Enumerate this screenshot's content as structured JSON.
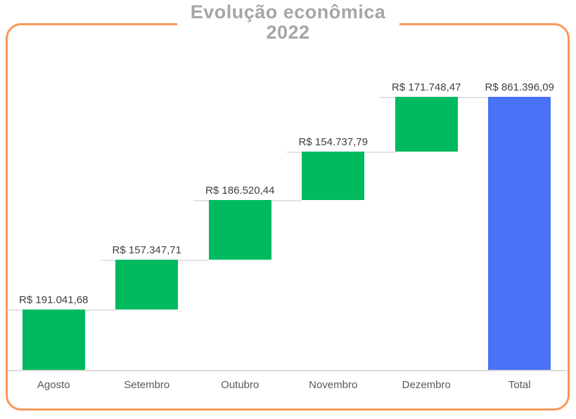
{
  "title": {
    "line1": "Evolução econômica",
    "line2": "2022"
  },
  "chart_data": {
    "type": "bar",
    "subtype": "waterfall",
    "title": "Evolução econômica 2022",
    "categories": [
      "Agosto",
      "Setembro",
      "Outubro",
      "Novembro",
      "Dezembro",
      "Total"
    ],
    "values": [
      191041.68,
      157347.71,
      186520.44,
      154737.79,
      171748.47,
      861396.09
    ],
    "value_labels": [
      "R$ 191.041,68",
      "R$ 157.347,71",
      "R$ 186.520,44",
      "R$ 154.737,79",
      "R$ 171.748,47",
      "R$ 861.396,09"
    ],
    "roles": [
      "increase",
      "increase",
      "increase",
      "increase",
      "increase",
      "total"
    ],
    "cumulative": [
      191041.68,
      348389.39,
      534909.83,
      689647.62,
      861396.09,
      861396.09
    ],
    "xlabel": "",
    "ylabel": "",
    "ylim": [
      0,
      880000
    ],
    "grid": false,
    "legend": false,
    "colors": {
      "increase": "#00BA60",
      "total": "#4A72F6"
    }
  },
  "style": {
    "border_color": "#F9975A",
    "title_color": "#A6A6A6",
    "value_label_color": "#3F3F3F",
    "axis_label_color": "#595959",
    "connector_color": "#E3E3E3",
    "baseline_color": "#DBDBDB",
    "background": "#FFFFFF"
  }
}
